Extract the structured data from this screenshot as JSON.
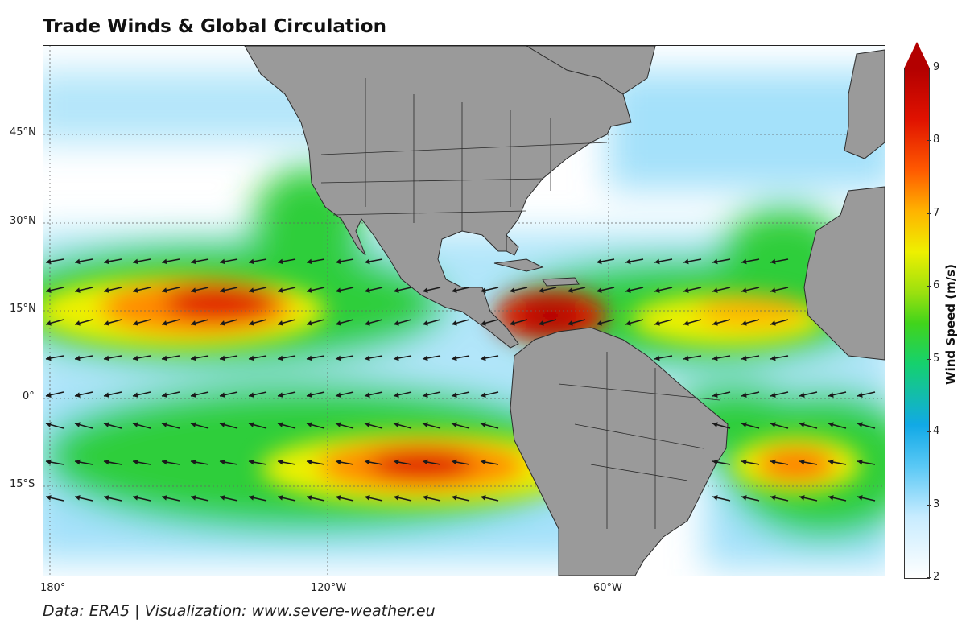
{
  "title": "Trade Winds & Global Circulation",
  "credit": "Data: ERA5 | Visualization: www.severe-weather.eu",
  "axes": {
    "lat_labels": [
      "45°N",
      "30°N",
      "15°N",
      "0°",
      "15°S"
    ],
    "lon_labels": [
      "180°",
      "120°W",
      "60°W"
    ]
  },
  "colorbar": {
    "label": "Wind Speed (m/s)",
    "ticks": [
      "9",
      "8",
      "7",
      "6",
      "5",
      "4",
      "3",
      "2"
    ],
    "min": 2,
    "max": 9,
    "extend": "max"
  },
  "colors": {
    "land": "#9a9a9a",
    "borders": "#2b2b2b",
    "arrows": "#1a1a1a",
    "calm": "#ffffff",
    "light": "#59c8f5",
    "moderate": "#3bd12a",
    "strong": "#ffb300",
    "max": "#d40000"
  },
  "regions_shown": [
    "North Pacific",
    "North America",
    "Caribbean",
    "South America",
    "North Atlantic",
    "South Atlantic",
    "West Africa"
  ]
}
